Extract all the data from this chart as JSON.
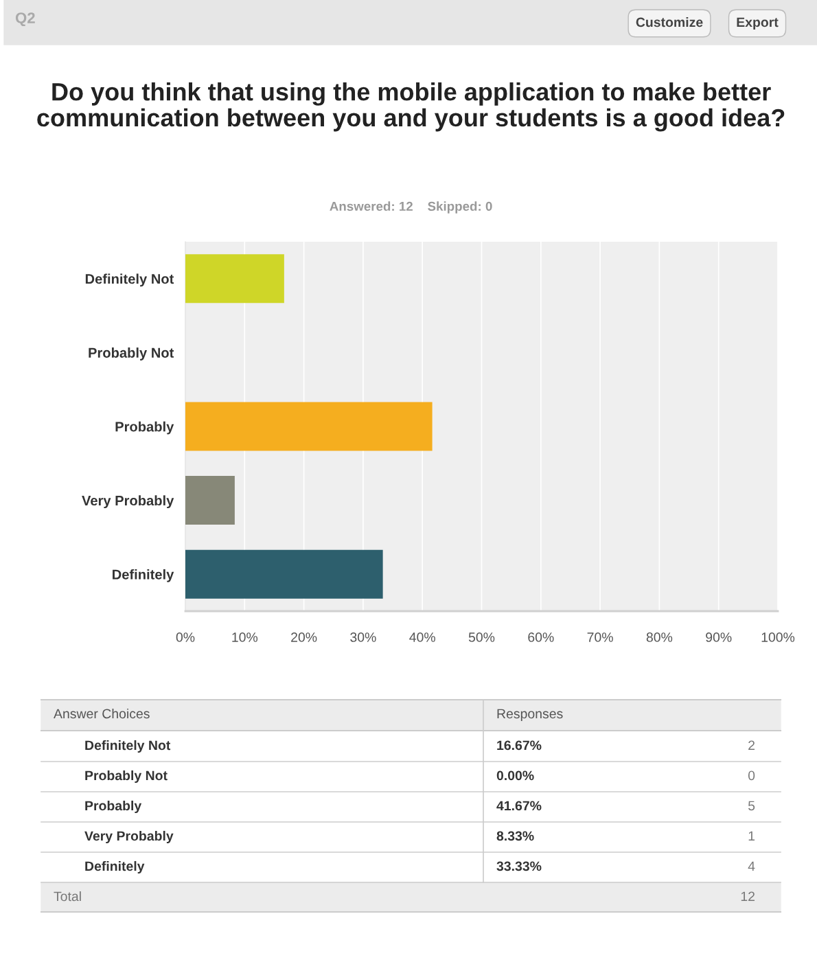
{
  "chart_data": {
    "type": "bar",
    "orientation": "horizontal",
    "title": "Do you think that using the mobile application to make better communication between you and your students is a good idea?",
    "subtitle": "Answered: 12    Skipped: 0",
    "categories": [
      "Definitely Not",
      "Probably Not",
      "Probably",
      "Very Probably",
      "Definitely"
    ],
    "values": [
      16.67,
      0.0,
      41.67,
      8.33,
      33.33
    ],
    "colors": [
      "#cfd628",
      "#b0b0b0",
      "#f5ae1f",
      "#878878",
      "#2d5f6d"
    ],
    "xlim": [
      0,
      100
    ],
    "xticks": [
      {
        "value": 0,
        "label": "0%"
      },
      {
        "value": 10,
        "label": "10%"
      },
      {
        "value": 20,
        "label": "20%"
      },
      {
        "value": 30,
        "label": "30%"
      },
      {
        "value": 40,
        "label": "40%"
      },
      {
        "value": 50,
        "label": "50%"
      },
      {
        "value": 60,
        "label": "60%"
      },
      {
        "value": 70,
        "label": "70%"
      },
      {
        "value": 80,
        "label": "80%"
      },
      {
        "value": 90,
        "label": "90%"
      },
      {
        "value": 100,
        "label": "100%"
      }
    ],
    "grid": "x",
    "annotations": [
      "Q2",
      "Customize",
      "Export",
      "Answer Choices",
      "Responses",
      "16.67%",
      "2",
      "0.00%",
      "0",
      "41.67%",
      "5",
      "8.33%",
      "1",
      "33.33%",
      "4",
      "Total",
      "12"
    ]
  }
}
